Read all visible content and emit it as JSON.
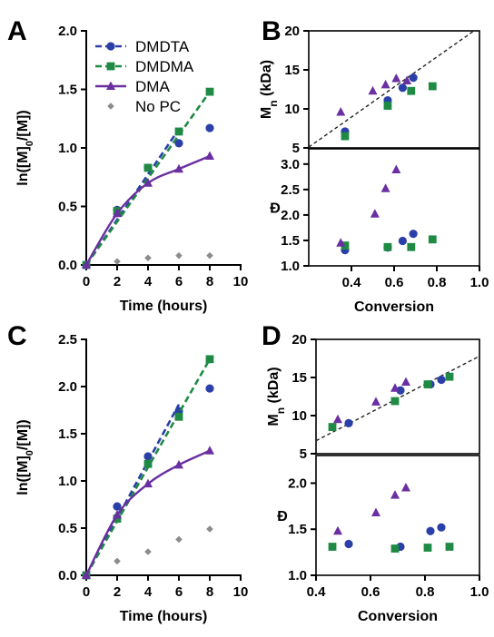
{
  "colors": {
    "DMDTA": "#2b3fa8",
    "DMDMA": "#1f8a44",
    "DMA": "#6a2fa0",
    "NoPC": "#8c8c8c",
    "fit": "#222222"
  },
  "chart_data": [
    {
      "panel": "A",
      "type": "line",
      "xlabel": "Time (hours)",
      "ylabel": "ln([M]0/[M])",
      "xlim": [
        0,
        10
      ],
      "ylim": [
        0,
        2.0
      ],
      "xticks": [
        "0",
        "2",
        "4",
        "6",
        "8",
        "10"
      ],
      "yticks": [
        "0.0",
        "0.5",
        "1.0",
        "1.5",
        "2.0"
      ],
      "legend_position": "top-left",
      "legend": [
        "DMDTA",
        "DMDMA",
        "DMA",
        "No PC"
      ],
      "series": [
        {
          "name": "DMDTA",
          "x": [
            0,
            2,
            4,
            6,
            8
          ],
          "y": [
            0.0,
            0.47,
            0.83,
            1.04,
            1.17
          ],
          "line_x": [
            0,
            6
          ],
          "line_y": [
            0.0,
            1.16
          ]
        },
        {
          "name": "DMDMA",
          "x": [
            0,
            2,
            4,
            6,
            8
          ],
          "y": [
            0.0,
            0.46,
            0.83,
            1.14,
            1.48
          ],
          "line_x": [
            0,
            8
          ],
          "line_y": [
            0.0,
            1.48
          ]
        },
        {
          "name": "DMA",
          "x": [
            0,
            2,
            4,
            6,
            8
          ],
          "y": [
            0.0,
            0.44,
            0.7,
            0.82,
            0.93
          ]
        },
        {
          "name": "No PC",
          "x": [
            2,
            4,
            6,
            8
          ],
          "y": [
            0.03,
            0.06,
            0.08,
            0.08
          ]
        }
      ]
    },
    {
      "panel": "B",
      "type": "scatter",
      "xlim": [
        0.2,
        1.0
      ],
      "top": {
        "ylabel": "Mn (kDa)",
        "ylim": [
          5,
          20
        ],
        "yticks": [
          "5",
          "10",
          "15",
          "20"
        ],
        "fit_line": {
          "x": [
            0.2,
            1.0
          ],
          "y": [
            5.1,
            20.5
          ]
        },
        "series": [
          {
            "name": "DMDTA",
            "x": [
              0.37,
              0.57,
              0.64,
              0.69
            ],
            "y": [
              7.1,
              11.1,
              12.7,
              14.0
            ]
          },
          {
            "name": "DMDMA",
            "x": [
              0.37,
              0.57,
              0.68,
              0.78
            ],
            "y": [
              6.5,
              10.4,
              12.3,
              12.9
            ]
          },
          {
            "name": "DMA",
            "x": [
              0.35,
              0.5,
              0.56,
              0.61,
              0.66
            ],
            "y": [
              9.6,
              12.3,
              13.1,
              13.9,
              13.6
            ]
          }
        ]
      },
      "bottom": {
        "ylabel": "Đ",
        "ylim": [
          1.0,
          3.3
        ],
        "yticks": [
          "1.0",
          "1.5",
          "2.0",
          "2.5",
          "3.0"
        ],
        "xlabel": "Conversion",
        "xticks": [
          "0.4",
          "0.6",
          "0.8",
          "1.0"
        ],
        "series": [
          {
            "name": "DMDTA",
            "x": [
              0.37,
              0.57,
              0.64,
              0.69
            ],
            "y": [
              1.31,
              1.36,
              1.49,
              1.63
            ]
          },
          {
            "name": "DMDMA",
            "x": [
              0.37,
              0.57,
              0.68,
              0.78
            ],
            "y": [
              1.4,
              1.37,
              1.37,
              1.52
            ]
          },
          {
            "name": "DMA",
            "x": [
              0.35,
              0.51,
              0.56,
              0.61
            ],
            "y": [
              1.45,
              2.02,
              2.52,
              2.89
            ]
          }
        ]
      }
    },
    {
      "panel": "C",
      "type": "line",
      "xlabel": "Time (hours)",
      "ylabel": "ln([M]0/[M])",
      "xlim": [
        0,
        10
      ],
      "ylim": [
        0,
        2.5
      ],
      "xticks": [
        "0",
        "2",
        "4",
        "6",
        "8",
        "10"
      ],
      "yticks": [
        "0.0",
        "0.5",
        "1.0",
        "1.5",
        "2.0",
        "2.5"
      ],
      "series": [
        {
          "name": "DMDTA",
          "x": [
            0,
            2,
            4,
            6,
            8
          ],
          "y": [
            0.0,
            0.73,
            1.26,
            1.74,
            1.98
          ],
          "line_x": [
            0,
            6
          ],
          "line_y": [
            0.0,
            1.81
          ]
        },
        {
          "name": "DMDMA",
          "x": [
            0,
            2,
            4,
            6,
            8
          ],
          "y": [
            0.0,
            0.6,
            1.18,
            1.68,
            2.29
          ],
          "line_x": [
            0,
            8
          ],
          "line_y": [
            0.0,
            2.29
          ]
        },
        {
          "name": "DMA",
          "x": [
            0,
            2,
            4,
            6,
            8
          ],
          "y": [
            0.0,
            0.64,
            0.97,
            1.17,
            1.32
          ]
        },
        {
          "name": "No PC",
          "x": [
            2,
            4,
            6,
            8
          ],
          "y": [
            0.15,
            0.25,
            0.38,
            0.49
          ]
        }
      ]
    },
    {
      "panel": "D",
      "type": "scatter",
      "xlim": [
        0.4,
        1.0
      ],
      "top": {
        "ylabel": "Mn (kDa)",
        "ylim": [
          5,
          20
        ],
        "yticks": [
          "5",
          "10",
          "15",
          "20"
        ],
        "fit_line": {
          "x": [
            0.4,
            1.0
          ],
          "y": [
            6.7,
            17.8
          ]
        },
        "series": [
          {
            "name": "DMDTA",
            "x": [
              0.52,
              0.71,
              0.82,
              0.86
            ],
            "y": [
              9.0,
              13.3,
              14.1,
              14.7
            ]
          },
          {
            "name": "DMDMA",
            "x": [
              0.46,
              0.69,
              0.81,
              0.89
            ],
            "y": [
              8.5,
              11.9,
              14.1,
              15.1
            ]
          },
          {
            "name": "DMA",
            "x": [
              0.48,
              0.62,
              0.69,
              0.73
            ],
            "y": [
              9.5,
              11.8,
              13.6,
              14.4
            ]
          }
        ]
      },
      "bottom": {
        "ylabel": "Đ",
        "ylim": [
          1.0,
          2.3
        ],
        "yticks": [
          "1.0",
          "1.5",
          "2.0"
        ],
        "xlabel": "Conversion",
        "xticks": [
          "0.4",
          "0.6",
          "0.8",
          "1.0"
        ],
        "series": [
          {
            "name": "DMDTA",
            "x": [
              0.52,
              0.71,
              0.82,
              0.86
            ],
            "y": [
              1.34,
              1.31,
              1.48,
              1.52
            ]
          },
          {
            "name": "DMDMA",
            "x": [
              0.46,
              0.69,
              0.81,
              0.89
            ],
            "y": [
              1.31,
              1.29,
              1.3,
              1.31
            ]
          },
          {
            "name": "DMA",
            "x": [
              0.48,
              0.62,
              0.69,
              0.73
            ],
            "y": [
              1.48,
              1.68,
              1.87,
              1.95
            ]
          }
        ]
      }
    }
  ]
}
